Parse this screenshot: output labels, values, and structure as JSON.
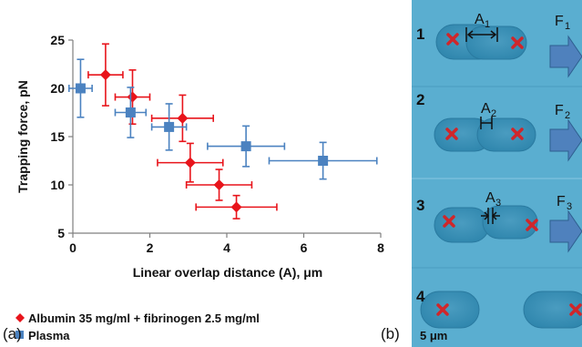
{
  "chart_data": {
    "type": "scatter",
    "xlabel": "Linear overlap distance (A), μm",
    "ylabel": "Trapping force, pN",
    "xlim": [
      0,
      8
    ],
    "ylim": [
      5,
      25
    ],
    "xticks": [
      "0",
      "2",
      "4",
      "6",
      "8"
    ],
    "yticks": [
      "5",
      "10",
      "15",
      "20",
      "25"
    ],
    "grid": false,
    "legend_position": "bottom-left",
    "series": [
      {
        "name": "Albumin 35 mg/ml + fibrinogen 2.5 mg/ml",
        "color": "#e8141b",
        "marker": "diamond",
        "points": [
          {
            "x": 0.85,
            "y": 21.4,
            "xerr": 0.45,
            "yerr": 3.2
          },
          {
            "x": 1.55,
            "y": 19.1,
            "xerr": 0.45,
            "yerr": 2.8
          },
          {
            "x": 2.85,
            "y": 16.9,
            "xerr": 0.8,
            "yerr": 2.4
          },
          {
            "x": 3.05,
            "y": 12.3,
            "xerr": 0.85,
            "yerr": 2.0
          },
          {
            "x": 3.8,
            "y": 10.0,
            "xerr": 0.85,
            "yerr": 1.6
          },
          {
            "x": 4.25,
            "y": 7.7,
            "xerr": 1.05,
            "yerr": 1.2
          }
        ]
      },
      {
        "name": "Plasma",
        "color": "#4b82c0",
        "marker": "square",
        "points": [
          {
            "x": 0.2,
            "y": 20.0,
            "xerr": 0.3,
            "yerr": 3.0
          },
          {
            "x": 1.5,
            "y": 17.5,
            "xerr": 0.4,
            "yerr": 2.6
          },
          {
            "x": 2.5,
            "y": 16.0,
            "xerr": 0.45,
            "yerr": 2.4
          },
          {
            "x": 4.5,
            "y": 14.0,
            "xerr": 1.0,
            "yerr": 2.1
          },
          {
            "x": 6.5,
            "y": 12.5,
            "xerr": 1.4,
            "yerr": 1.9
          }
        ]
      }
    ],
    "panel_label": "(a)"
  },
  "micrograph": {
    "panel_label": "(b)",
    "scale_bar": "5 μm",
    "frames": [
      {
        "number": "1",
        "overlap": "A",
        "overlap_sub": "1",
        "force": "F",
        "force_sub": "1"
      },
      {
        "number": "2",
        "overlap": "A",
        "overlap_sub": "2",
        "force": "F",
        "force_sub": "2"
      },
      {
        "number": "3",
        "overlap": "A",
        "overlap_sub": "3",
        "force": "F",
        "force_sub": "3"
      },
      {
        "number": "4"
      }
    ],
    "background_color": "#5aaed0",
    "cell_color": "#3e93b8",
    "marker_color": "#d0262a",
    "arrow_color": "#4f81bd"
  }
}
